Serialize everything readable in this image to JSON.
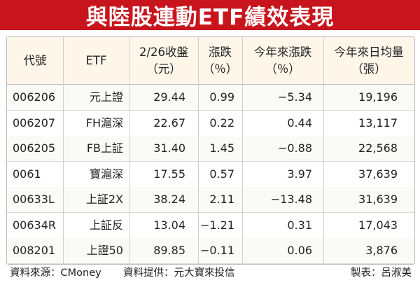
{
  "title": "與陸股連動ETF績效表現",
  "header": {
    "code": "代號",
    "etf": "ETF",
    "close_line1": "2/26收盤",
    "close_line2": "（元）",
    "change_line1": "漲跌",
    "change_line2": "（％）",
    "ytd_line1": "今年來漲跌",
    "ytd_line2": "（％）",
    "vol_line1": "今年來日均量",
    "vol_line2": "（張）"
  },
  "rows": [
    {
      "code": "006206",
      "etf": "元上證",
      "close": "29.44",
      "change": "0.99",
      "ytd": "−5.34",
      "volume": "19,196"
    },
    {
      "code": "006207",
      "etf": "FH滬深",
      "close": "22.67",
      "change": "0.22",
      "ytd": "0.44",
      "volume": "13,117"
    },
    {
      "code": "006205",
      "etf": "FB上証",
      "close": "31.40",
      "change": "1.45",
      "ytd": "−0.88",
      "volume": "22,568"
    },
    {
      "code": "0061",
      "etf": "寶滬深",
      "close": "17.55",
      "change": "0.57",
      "ytd": "3.97",
      "volume": "37,639"
    },
    {
      "code": "00633L",
      "etf": "上証2X",
      "close": "38.24",
      "change": "2.11",
      "ytd": "−13.48",
      "volume": "31,639"
    },
    {
      "code": "00634R",
      "etf": "上証反",
      "close": "13.04",
      "change": "−1.21",
      "ytd": "0.31",
      "volume": "17,043"
    },
    {
      "code": "008201",
      "etf": "上證50",
      "close": "89.85",
      "change": "−0.11",
      "ytd": "0.06",
      "volume": "3,876"
    }
  ],
  "footer": {
    "source": "資料來源：CMoney",
    "provider": "資料提供：元大寶來投信",
    "maker": "製表：呂淑美"
  },
  "colors": {
    "title_bg": "#c8151d",
    "header_bg": "#fff6ea"
  }
}
